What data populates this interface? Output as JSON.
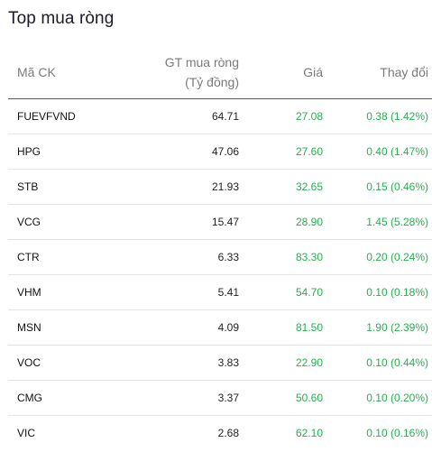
{
  "title": "Top mua ròng",
  "headers": {
    "symbol": "Mã CK",
    "value_line1": "GT mua ròng",
    "value_line2": "(Tỷ đồng)",
    "price": "Giá",
    "change": "Thay đổi"
  },
  "colors": {
    "up": "#22b24c"
  },
  "rows": [
    {
      "symbol": "FUEVFVND",
      "value": "64.71",
      "price": "27.08",
      "change": "0.38 (1.42%)"
    },
    {
      "symbol": "HPG",
      "value": "47.06",
      "price": "27.60",
      "change": "0.40 (1.47%)"
    },
    {
      "symbol": "STB",
      "value": "21.93",
      "price": "32.65",
      "change": "0.15 (0.46%)"
    },
    {
      "symbol": "VCG",
      "value": "15.47",
      "price": "28.90",
      "change": "1.45 (5.28%)"
    },
    {
      "symbol": "CTR",
      "value": "6.33",
      "price": "83.30",
      "change": "0.20 (0.24%)"
    },
    {
      "symbol": "VHM",
      "value": "5.41",
      "price": "54.70",
      "change": "0.10 (0.18%)"
    },
    {
      "symbol": "MSN",
      "value": "4.09",
      "price": "81.50",
      "change": "1.90 (2.39%)"
    },
    {
      "symbol": "VOC",
      "value": "3.83",
      "price": "22.90",
      "change": "0.10 (0.44%)"
    },
    {
      "symbol": "CMG",
      "value": "3.37",
      "price": "50.60",
      "change": "0.10 (0.20%)"
    },
    {
      "symbol": "VIC",
      "value": "2.68",
      "price": "62.10",
      "change": "0.10 (0.16%)"
    }
  ]
}
